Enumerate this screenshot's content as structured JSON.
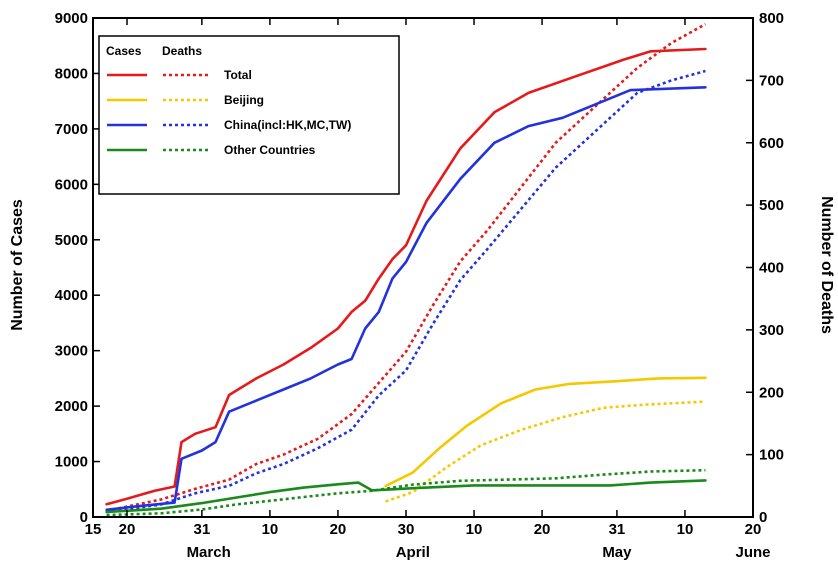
{
  "chart_data": {
    "type": "line",
    "title": "",
    "ylabel": "Number of Cases",
    "ylabel_right": "Number of Deaths",
    "ylim": [
      0,
      9000
    ],
    "ylim_right": [
      0,
      800
    ],
    "yticks": [
      0,
      1000,
      2000,
      3000,
      4000,
      5000,
      6000,
      7000,
      8000,
      9000
    ],
    "yticks_right": [
      0,
      100,
      200,
      300,
      400,
      500,
      600,
      700,
      800
    ],
    "xlim": [
      "2003-03-15",
      "2003-06-20"
    ],
    "xticks": [
      {
        "date": "2003-03-15",
        "label": "15"
      },
      {
        "date": "2003-03-20",
        "label": "20"
      },
      {
        "date": "2003-03-31",
        "label": "31"
      },
      {
        "date": "2003-04-10",
        "label": "10"
      },
      {
        "date": "2003-04-20",
        "label": "20"
      },
      {
        "date": "2003-04-30",
        "label": "30"
      },
      {
        "date": "2003-05-10",
        "label": "10"
      },
      {
        "date": "2003-05-20",
        "label": "20"
      },
      {
        "date": "2003-05-31",
        "label": "31"
      },
      {
        "date": "2003-06-10",
        "label": "10"
      },
      {
        "date": "2003-06-20",
        "label": "20"
      }
    ],
    "months": [
      {
        "label": "March",
        "date": "2003-04-01"
      },
      {
        "label": "April",
        "date": "2003-05-01"
      },
      {
        "label": "May",
        "date": "2003-05-31"
      },
      {
        "label": "June",
        "date": "2003-06-20"
      }
    ],
    "legend": {
      "position": "top-left",
      "header_cases": "Cases",
      "header_deaths": "Deaths"
    },
    "grid": false,
    "series": [
      {
        "name": "Total",
        "color": "#e41a1c",
        "cases": [
          [
            "2003-03-17",
            230
          ],
          [
            "2003-03-20",
            330
          ],
          [
            "2003-03-24",
            470
          ],
          [
            "2003-03-27",
            550
          ],
          [
            "2003-03-28",
            1350
          ],
          [
            "2003-03-30",
            1500
          ],
          [
            "2003-04-02",
            1620
          ],
          [
            "2003-04-04",
            2200
          ],
          [
            "2003-04-08",
            2500
          ],
          [
            "2003-04-12",
            2750
          ],
          [
            "2003-04-16",
            3050
          ],
          [
            "2003-04-20",
            3400
          ],
          [
            "2003-04-22",
            3700
          ],
          [
            "2003-04-24",
            3900
          ],
          [
            "2003-04-26",
            4300
          ],
          [
            "2003-04-28",
            4650
          ],
          [
            "2003-04-30",
            4900
          ],
          [
            "2003-05-03",
            5700
          ],
          [
            "2003-05-08",
            6650
          ],
          [
            "2003-05-13",
            7300
          ],
          [
            "2003-05-18",
            7650
          ],
          [
            "2003-05-25",
            7950
          ],
          [
            "2003-06-01",
            8250
          ],
          [
            "2003-06-05",
            8400
          ],
          [
            "2003-06-13",
            8440
          ]
        ],
        "deaths": [
          [
            "2003-03-17",
            10
          ],
          [
            "2003-03-25",
            28
          ],
          [
            "2003-03-30",
            45
          ],
          [
            "2003-04-04",
            60
          ],
          [
            "2003-04-08",
            85
          ],
          [
            "2003-04-12",
            100
          ],
          [
            "2003-04-17",
            125
          ],
          [
            "2003-04-22",
            165
          ],
          [
            "2003-04-26",
            215
          ],
          [
            "2003-04-30",
            265
          ],
          [
            "2003-05-04",
            340
          ],
          [
            "2003-05-08",
            410
          ],
          [
            "2003-05-12",
            460
          ],
          [
            "2003-05-17",
            530
          ],
          [
            "2003-05-22",
            600
          ],
          [
            "2003-05-28",
            660
          ],
          [
            "2003-06-03",
            720
          ],
          [
            "2003-06-08",
            760
          ],
          [
            "2003-06-13",
            790
          ]
        ]
      },
      {
        "name": "Beijing",
        "color": "#f5c800",
        "cases": [
          [
            "2003-04-27",
            560
          ],
          [
            "2003-05-01",
            800
          ],
          [
            "2003-05-05",
            1250
          ],
          [
            "2003-05-09",
            1650
          ],
          [
            "2003-05-14",
            2050
          ],
          [
            "2003-05-19",
            2300
          ],
          [
            "2003-05-24",
            2400
          ],
          [
            "2003-05-31",
            2450
          ],
          [
            "2003-06-06",
            2500
          ],
          [
            "2003-06-13",
            2510
          ]
        ],
        "deaths": [
          [
            "2003-04-27",
            25
          ],
          [
            "2003-05-01",
            40
          ],
          [
            "2003-05-06",
            80
          ],
          [
            "2003-05-11",
            115
          ],
          [
            "2003-05-17",
            140
          ],
          [
            "2003-05-23",
            160
          ],
          [
            "2003-05-29",
            175
          ],
          [
            "2003-06-04",
            180
          ],
          [
            "2003-06-13",
            185
          ]
        ]
      },
      {
        "name": "China(incl:HK,MC,TW)",
        "color": "#2233dd",
        "cases": [
          [
            "2003-03-17",
            130
          ],
          [
            "2003-03-22",
            200
          ],
          [
            "2003-03-27",
            260
          ],
          [
            "2003-03-28",
            1050
          ],
          [
            "2003-03-31",
            1200
          ],
          [
            "2003-04-02",
            1350
          ],
          [
            "2003-04-04",
            1900
          ],
          [
            "2003-04-08",
            2100
          ],
          [
            "2003-04-12",
            2300
          ],
          [
            "2003-04-16",
            2500
          ],
          [
            "2003-04-20",
            2750
          ],
          [
            "2003-04-22",
            2850
          ],
          [
            "2003-04-24",
            3400
          ],
          [
            "2003-04-26",
            3700
          ],
          [
            "2003-04-28",
            4300
          ],
          [
            "2003-04-30",
            4600
          ],
          [
            "2003-05-03",
            5300
          ],
          [
            "2003-05-08",
            6100
          ],
          [
            "2003-05-13",
            6750
          ],
          [
            "2003-05-18",
            7050
          ],
          [
            "2003-05-23",
            7200
          ],
          [
            "2003-05-28",
            7450
          ],
          [
            "2003-06-02",
            7700
          ],
          [
            "2003-06-13",
            7750
          ]
        ],
        "deaths": [
          [
            "2003-03-17",
            8
          ],
          [
            "2003-03-25",
            20
          ],
          [
            "2003-03-30",
            38
          ],
          [
            "2003-04-04",
            50
          ],
          [
            "2003-04-08",
            70
          ],
          [
            "2003-04-12",
            85
          ],
          [
            "2003-04-17",
            110
          ],
          [
            "2003-04-22",
            140
          ],
          [
            "2003-04-26",
            195
          ],
          [
            "2003-04-30",
            235
          ],
          [
            "2003-05-04",
            310
          ],
          [
            "2003-05-08",
            380
          ],
          [
            "2003-05-12",
            430
          ],
          [
            "2003-05-17",
            495
          ],
          [
            "2003-05-22",
            560
          ],
          [
            "2003-05-28",
            620
          ],
          [
            "2003-06-03",
            680
          ],
          [
            "2003-06-08",
            700
          ],
          [
            "2003-06-13",
            715
          ]
        ]
      },
      {
        "name": "Other Countries",
        "color": "#1a8a1a",
        "cases": [
          [
            "2003-03-17",
            90
          ],
          [
            "2003-03-25",
            150
          ],
          [
            "2003-03-31",
            250
          ],
          [
            "2003-04-05",
            350
          ],
          [
            "2003-04-10",
            450
          ],
          [
            "2003-04-15",
            530
          ],
          [
            "2003-04-20",
            590
          ],
          [
            "2003-04-23",
            620
          ],
          [
            "2003-04-25",
            480
          ],
          [
            "2003-05-01",
            520
          ],
          [
            "2003-05-10",
            570
          ],
          [
            "2003-05-20",
            570
          ],
          [
            "2003-05-30",
            570
          ],
          [
            "2003-06-05",
            620
          ],
          [
            "2003-06-13",
            660
          ]
        ],
        "deaths": [
          [
            "2003-03-17",
            3
          ],
          [
            "2003-03-25",
            6
          ],
          [
            "2003-03-31",
            12
          ],
          [
            "2003-04-05",
            20
          ],
          [
            "2003-04-10",
            26
          ],
          [
            "2003-04-15",
            32
          ],
          [
            "2003-04-20",
            38
          ],
          [
            "2003-04-25",
            42
          ],
          [
            "2003-05-01",
            52
          ],
          [
            "2003-05-08",
            58
          ],
          [
            "2003-05-15",
            60
          ],
          [
            "2003-05-22",
            62
          ],
          [
            "2003-05-29",
            68
          ],
          [
            "2003-06-05",
            73
          ],
          [
            "2003-06-13",
            75
          ]
        ]
      }
    ]
  }
}
